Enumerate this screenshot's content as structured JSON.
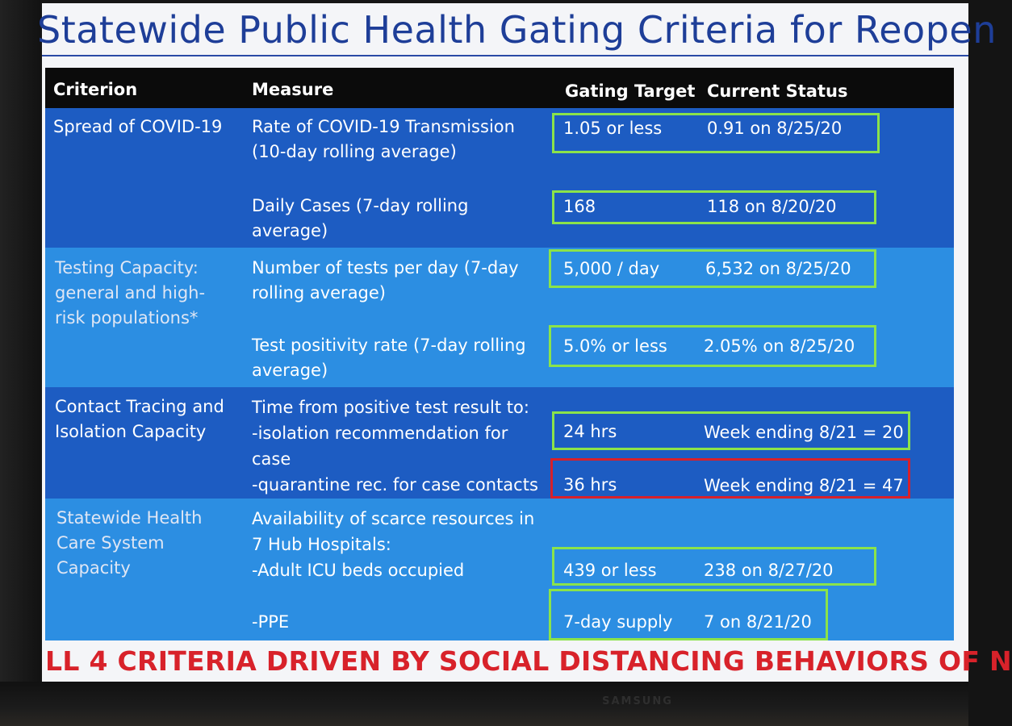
{
  "title": "Statewide Public Health Gating Criteria for Reopen",
  "headers": {
    "criterion": "Criterion",
    "measure": "Measure",
    "target": "Gating Target",
    "status": "Current Status"
  },
  "rows": [
    {
      "criterion": "Spread of COVID-19",
      "measures": [
        {
          "measure": "Rate of COVID-19 Transmission\n(10-day rolling average)",
          "target": "1.05 or less",
          "status": "0.91 on 8/25/20",
          "box": "green"
        },
        {
          "measure": "Daily Cases (7-day rolling\naverage)",
          "target": "168",
          "status": "118 on 8/20/20",
          "box": "green"
        }
      ]
    },
    {
      "criterion": "Testing Capacity:\ngeneral and high-\nrisk populations*",
      "measures": [
        {
          "measure": "Number of tests per day (7-day\nrolling average)",
          "target": "5,000 / day",
          "status": "6,532 on 8/25/20",
          "box": "green"
        },
        {
          "measure": "Test positivity rate  (7-day rolling\naverage)",
          "target": "5.0% or less",
          "status": "2.05% on 8/25/20",
          "box": "green"
        }
      ]
    },
    {
      "criterion": "Contact Tracing and\nIsolation Capacity",
      "measure_text": "Time from positive test result to:\n-isolation recommendation for\ncase\n-quarantine rec. for case contacts",
      "measures": [
        {
          "target": "24 hrs",
          "status": "Week ending 8/21 = 20",
          "box": "green"
        },
        {
          "target": "36 hrs",
          "status": "Week ending 8/21 = 47",
          "box": "red"
        }
      ]
    },
    {
      "criterion": "Statewide Health\nCare System\nCapacity",
      "measure_text": "Availability of scarce resources in\n7 Hub Hospitals:\n-Adult ICU beds occupied",
      "measures": [
        {
          "target": "439 or less",
          "status": "238 on 8/27/20",
          "box": "green"
        },
        {
          "measure": "-PPE",
          "target": "7-day supply",
          "status": "7 on 8/21/20",
          "box": "green"
        }
      ]
    }
  ],
  "footer": "LL 4 CRITERIA DRIVEN BY SOCIAL DISTANCING BEHAVIORS OF N",
  "brand": "SAMSUNG",
  "colors": {
    "title": "#1e3e98",
    "header_bg": "#0b0b0b",
    "band_dark": "#1d5cc2",
    "band_light": "#2c8ee2",
    "box_ok": "#8be34a",
    "box_alert": "#d8202a",
    "footer": "#d8222a"
  }
}
